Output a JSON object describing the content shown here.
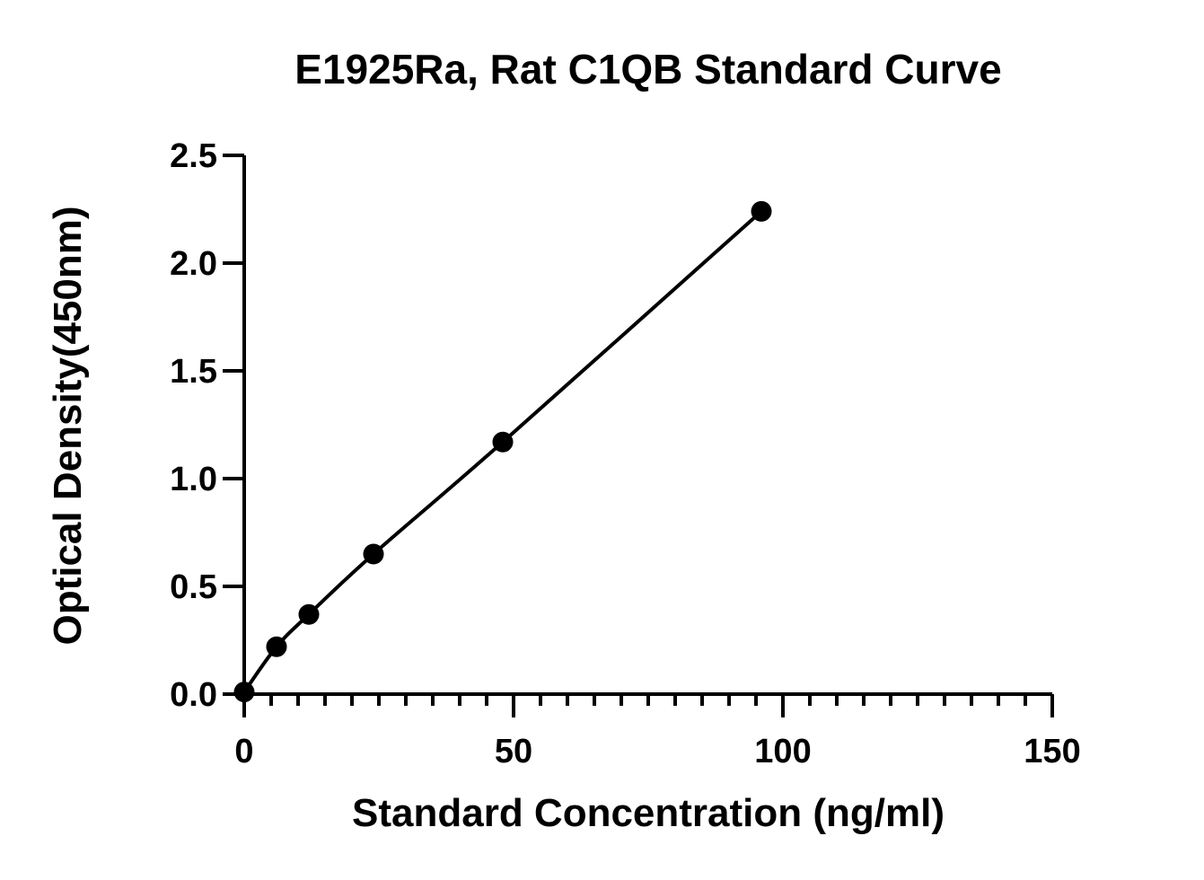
{
  "chart_data": {
    "type": "scatter",
    "title": "E1925Ra, Rat C1QB Standard Curve",
    "xlabel": "Standard Concentration (ng/ml)",
    "ylabel": "Optical Density(450nm)",
    "xlim": [
      0,
      150
    ],
    "ylim": [
      0,
      2.5
    ],
    "x_ticks": [
      "0",
      "50",
      "100",
      "150"
    ],
    "y_ticks": [
      "0.0",
      "0.5",
      "1.0",
      "1.5",
      "2.0",
      "2.5"
    ],
    "x_minor_tick_step": 5,
    "grid": false,
    "fit_line": true,
    "series": [
      {
        "x": [
          0,
          6,
          12,
          24,
          48,
          96
        ],
        "y": [
          0.01,
          0.22,
          0.37,
          0.65,
          1.17,
          2.24
        ]
      }
    ],
    "colors": {
      "marker": "#000000",
      "line": "#000000",
      "axis": "#000000",
      "background": "#ffffff"
    }
  }
}
